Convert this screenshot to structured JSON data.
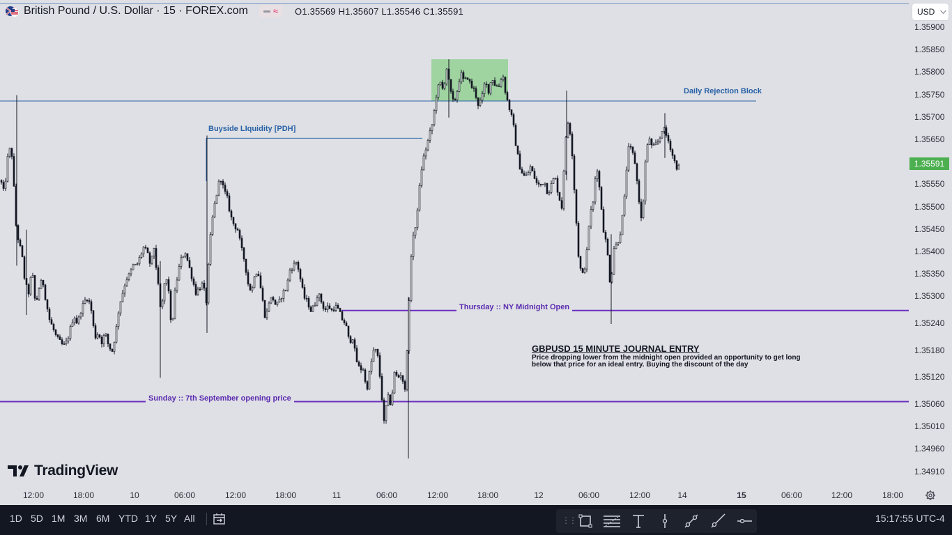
{
  "header": {
    "symbol_title": "British Pound / U.S. Dollar · 15 · FOREX.com",
    "ohlc": "O1.35569  H1.35607  L1.35546  C1.35591"
  },
  "currency_select": "USD",
  "last_price": "1.35591",
  "colors": {
    "background": "#dfe0e5",
    "candle": "#131722",
    "last_price": "#4caf50",
    "blue_annotation": "#2962a6",
    "purple_line": "#6a2fc0",
    "zone_fill": "#8fd18f",
    "toolbar_bg": "#131722"
  },
  "price_scale": [
    "1.35900",
    "1.35850",
    "1.35800",
    "1.35750",
    "1.35700",
    "1.35650",
    "1.35550",
    "1.35500",
    "1.35450",
    "1.35400",
    "1.35350",
    "1.35300",
    "1.35240",
    "1.35180",
    "1.35120",
    "1.35060",
    "1.35010",
    "1.34960",
    "1.34910"
  ],
  "time_axis": [
    "12:00",
    "18:00",
    "10",
    "06:00",
    "12:00",
    "18:00",
    "11",
    "06:00",
    "12:00",
    "18:00",
    "12",
    "06:00",
    "12:00",
    "14",
    "15",
    "06:00",
    "12:00",
    "18:00"
  ],
  "annotations": {
    "daily_rejection": "Daily Rejection Block",
    "buyside_liquidity": "Buyside LIquidity [PDH]",
    "ny_midnight": "Thursday :: NY Midnight Open",
    "sunday_open": "Sunday :: 7th September opening price"
  },
  "journal": {
    "title": "GBPUSD 15 MINUTE JOURNAL ENTRY",
    "line1": "Price dropping lower from the midnight open provided an opportunity to get long",
    "line2": "below that price for an ideal entry. Buying the discount of the day"
  },
  "logo_text": "TradingView",
  "ranges": [
    "1D",
    "5D",
    "1M",
    "3M",
    "6M",
    "YTD",
    "1Y",
    "5Y",
    "All"
  ],
  "clock": "15:17:55 UTC-4",
  "icons": [
    "gear-icon",
    "calendar-range-icon",
    "rectangle-tool-icon",
    "fib-tool-icon",
    "text-tool-icon",
    "vertical-line-icon",
    "trend-line-icon",
    "ray-icon",
    "horizontal-ray-icon"
  ],
  "chart_data": {
    "type": "candlestick",
    "symbol": "GBPUSD",
    "interval": "15",
    "ylim": [
      1.349,
      1.3592
    ],
    "levels": [
      {
        "label": "Daily Rejection Block",
        "price": 1.35737
      },
      {
        "label": "Buyside LIquidity [PDH]",
        "price": 1.35654
      },
      {
        "label": "Thursday :: NY Midnight Open",
        "price": 1.3527
      },
      {
        "label": "Sunday :: 7th September opening price",
        "price": 1.35067
      }
    ],
    "zone": {
      "price_top": 1.3583,
      "price_bottom": 1.35737
    },
    "path": [
      [
        0,
        1.3556
      ],
      [
        5,
        1.3553
      ],
      [
        10,
        1.3561
      ],
      [
        15,
        1.3564
      ],
      [
        18,
        1.3557
      ],
      [
        22,
        1.3546
      ],
      [
        26,
        1.3542
      ],
      [
        30,
        1.354
      ],
      [
        35,
        1.3533
      ],
      [
        40,
        1.3531
      ],
      [
        45,
        1.3536
      ],
      [
        50,
        1.3528
      ],
      [
        55,
        1.3532
      ],
      [
        60,
        1.3534
      ],
      [
        65,
        1.3529
      ],
      [
        70,
        1.3525
      ],
      [
        75,
        1.3523
      ],
      [
        80,
        1.3521
      ],
      [
        85,
        1.352
      ],
      [
        90,
        1.3519
      ],
      [
        95,
        1.352
      ],
      [
        100,
        1.3523
      ],
      [
        105,
        1.3526
      ],
      [
        110,
        1.3524
      ],
      [
        115,
        1.3527
      ],
      [
        120,
        1.3529
      ],
      [
        125,
        1.353
      ],
      [
        130,
        1.3527
      ],
      [
        135,
        1.3521
      ],
      [
        140,
        1.3522
      ],
      [
        145,
        1.352
      ],
      [
        150,
        1.3522
      ],
      [
        155,
        1.3519
      ],
      [
        160,
        1.3518
      ],
      [
        165,
        1.3522
      ],
      [
        170,
        1.3528
      ],
      [
        175,
        1.3531
      ],
      [
        180,
        1.3534
      ],
      [
        185,
        1.3535
      ],
      [
        190,
        1.3537
      ],
      [
        195,
        1.3537
      ],
      [
        200,
        1.3539
      ],
      [
        205,
        1.3541
      ],
      [
        210,
        1.354
      ],
      [
        215,
        1.3537
      ],
      [
        220,
        1.3541
      ],
      [
        225,
        1.3534
      ],
      [
        230,
        1.3526
      ],
      [
        235,
        1.3533
      ],
      [
        240,
        1.3534
      ],
      [
        245,
        1.3522
      ],
      [
        250,
        1.3531
      ],
      [
        255,
        1.3536
      ],
      [
        260,
        1.3539
      ],
      [
        265,
        1.354
      ],
      [
        270,
        1.3537
      ],
      [
        275,
        1.3534
      ],
      [
        280,
        1.3531
      ],
      [
        285,
        1.3532
      ],
      [
        290,
        1.3533
      ],
      [
        295,
        1.3529
      ],
      [
        300,
        1.3542
      ],
      [
        305,
        1.3549
      ],
      [
        310,
        1.3553
      ],
      [
        315,
        1.3557
      ],
      [
        320,
        1.3554
      ],
      [
        325,
        1.3552
      ],
      [
        330,
        1.3548
      ],
      [
        335,
        1.3546
      ],
      [
        340,
        1.3545
      ],
      [
        345,
        1.3541
      ],
      [
        350,
        1.3538
      ],
      [
        355,
        1.3533
      ],
      [
        360,
        1.3531
      ],
      [
        365,
        1.3536
      ],
      [
        370,
        1.3535
      ],
      [
        375,
        1.353
      ],
      [
        380,
        1.3525
      ],
      [
        385,
        1.3529
      ],
      [
        390,
        1.353
      ],
      [
        395,
        1.3528
      ],
      [
        400,
        1.3529
      ],
      [
        405,
        1.3531
      ],
      [
        410,
        1.3532
      ],
      [
        415,
        1.3536
      ],
      [
        420,
        1.3537
      ],
      [
        425,
        1.3538
      ],
      [
        430,
        1.3534
      ],
      [
        435,
        1.353
      ],
      [
        440,
        1.3529
      ],
      [
        445,
        1.3527
      ],
      [
        450,
        1.3528
      ],
      [
        455,
        1.3531
      ],
      [
        460,
        1.3529
      ],
      [
        465,
        1.3527
      ],
      [
        470,
        1.3528
      ],
      [
        475,
        1.3527
      ],
      [
        480,
        1.3528
      ],
      [
        485,
        1.3527
      ],
      [
        490,
        1.3525
      ],
      [
        495,
        1.3524
      ],
      [
        500,
        1.352
      ],
      [
        505,
        1.3521
      ],
      [
        510,
        1.3516
      ],
      [
        515,
        1.3514
      ],
      [
        520,
        1.3514
      ],
      [
        525,
        1.3509
      ],
      [
        530,
        1.3514
      ],
      [
        535,
        1.3518
      ],
      [
        540,
        1.3518
      ],
      [
        545,
        1.3511
      ],
      [
        550,
        1.3502
      ],
      [
        555,
        1.3508
      ],
      [
        560,
        1.3506
      ],
      [
        565,
        1.3513
      ],
      [
        570,
        1.3512
      ],
      [
        575,
        1.3513
      ],
      [
        580,
        1.3509
      ],
      [
        585,
        1.3525
      ],
      [
        590,
        1.3543
      ],
      [
        595,
        1.3545
      ],
      [
        600,
        1.3553
      ],
      [
        605,
        1.356
      ],
      [
        610,
        1.3563
      ],
      [
        615,
        1.3566
      ],
      [
        620,
        1.3569
      ],
      [
        625,
        1.3575
      ],
      [
        630,
        1.3578
      ],
      [
        635,
        1.3576
      ],
      [
        640,
        1.3581
      ],
      [
        645,
        1.3576
      ],
      [
        650,
        1.3573
      ],
      [
        655,
        1.3576
      ],
      [
        660,
        1.358
      ],
      [
        665,
        1.3578
      ],
      [
        670,
        1.3579
      ],
      [
        675,
        1.3577
      ],
      [
        680,
        1.3576
      ],
      [
        685,
        1.3573
      ],
      [
        690,
        1.3574
      ],
      [
        695,
        1.3578
      ],
      [
        700,
        1.3576
      ],
      [
        705,
        1.3579
      ],
      [
        710,
        1.3577
      ],
      [
        715,
        1.3577
      ],
      [
        720,
        1.358
      ],
      [
        725,
        1.3575
      ],
      [
        730,
        1.3572
      ],
      [
        735,
        1.3569
      ],
      [
        740,
        1.3563
      ],
      [
        745,
        1.3559
      ],
      [
        750,
        1.3557
      ],
      [
        755,
        1.3557
      ],
      [
        760,
        1.3559
      ],
      [
        765,
        1.3557
      ],
      [
        770,
        1.3555
      ],
      [
        775,
        1.3555
      ],
      [
        780,
        1.3556
      ],
      [
        785,
        1.3553
      ],
      [
        790,
        1.3555
      ],
      [
        795,
        1.3557
      ],
      [
        800,
        1.3553
      ],
      [
        805,
        1.355
      ],
      [
        810,
        1.3564
      ],
      [
        815,
        1.357
      ],
      [
        820,
        1.3562
      ],
      [
        825,
        1.3549
      ],
      [
        830,
        1.3537
      ],
      [
        835,
        1.3535
      ],
      [
        840,
        1.3538
      ],
      [
        845,
        1.3548
      ],
      [
        850,
        1.3551
      ],
      [
        855,
        1.356
      ],
      [
        860,
        1.3553
      ],
      [
        865,
        1.3545
      ],
      [
        870,
        1.3541
      ],
      [
        875,
        1.3532
      ],
      [
        880,
        1.3541
      ],
      [
        885,
        1.3542
      ],
      [
        890,
        1.3545
      ],
      [
        895,
        1.3552
      ],
      [
        900,
        1.3563
      ],
      [
        905,
        1.3563
      ],
      [
        910,
        1.356
      ],
      [
        915,
        1.3553
      ],
      [
        920,
        1.3546
      ],
      [
        925,
        1.356
      ],
      [
        930,
        1.3566
      ],
      [
        935,
        1.3563
      ],
      [
        940,
        1.3564
      ],
      [
        945,
        1.3565
      ],
      [
        950,
        1.3568
      ],
      [
        955,
        1.3566
      ],
      [
        960,
        1.3564
      ],
      [
        965,
        1.3561
      ],
      [
        970,
        1.3559
      ],
      [
        975,
        1.3559
      ]
    ]
  }
}
